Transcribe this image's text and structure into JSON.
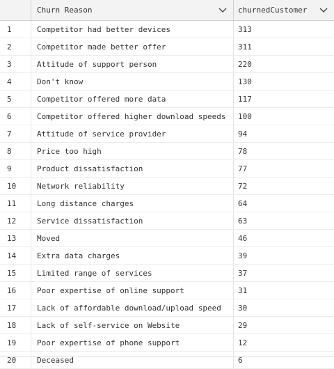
{
  "columns": {
    "reason": "Churn Reason",
    "count": "churnedCustomer",
    "dropdown_icon": "chevron-down-icon"
  },
  "rows": [
    {
      "idx": "1",
      "reason": "Competitor had better devices",
      "count": "313"
    },
    {
      "idx": "2",
      "reason": "Competitor made better offer",
      "count": "311"
    },
    {
      "idx": "3",
      "reason": "Attitude of support person",
      "count": "220"
    },
    {
      "idx": "4",
      "reason": "Don't know",
      "count": "130"
    },
    {
      "idx": "5",
      "reason": "Competitor offered more data",
      "count": "117"
    },
    {
      "idx": "6",
      "reason": "Competitor offered higher download speeds",
      "count": "100"
    },
    {
      "idx": "7",
      "reason": "Attitude of service provider",
      "count": "94"
    },
    {
      "idx": "8",
      "reason": "Price too high",
      "count": "78"
    },
    {
      "idx": "9",
      "reason": "Product dissatisfaction",
      "count": "77"
    },
    {
      "idx": "10",
      "reason": "Network reliability",
      "count": "72"
    },
    {
      "idx": "11",
      "reason": "Long distance charges",
      "count": "64"
    },
    {
      "idx": "12",
      "reason": "Service dissatisfaction",
      "count": "63"
    },
    {
      "idx": "13",
      "reason": "Moved",
      "count": "46"
    },
    {
      "idx": "14",
      "reason": "Extra data charges",
      "count": "39"
    },
    {
      "idx": "15",
      "reason": "Limited range of services",
      "count": "37"
    },
    {
      "idx": "16",
      "reason": "Poor expertise of online support",
      "count": "31"
    },
    {
      "idx": "17",
      "reason": "Lack of affordable download/upload speed",
      "count": "30"
    },
    {
      "idx": "18",
      "reason": "Lack of self-service on Website",
      "count": "29"
    },
    {
      "idx": "19",
      "reason": "Poor expertise of phone support",
      "count": "12"
    },
    {
      "idx": "20",
      "reason": "Deceased",
      "count": "6"
    }
  ]
}
